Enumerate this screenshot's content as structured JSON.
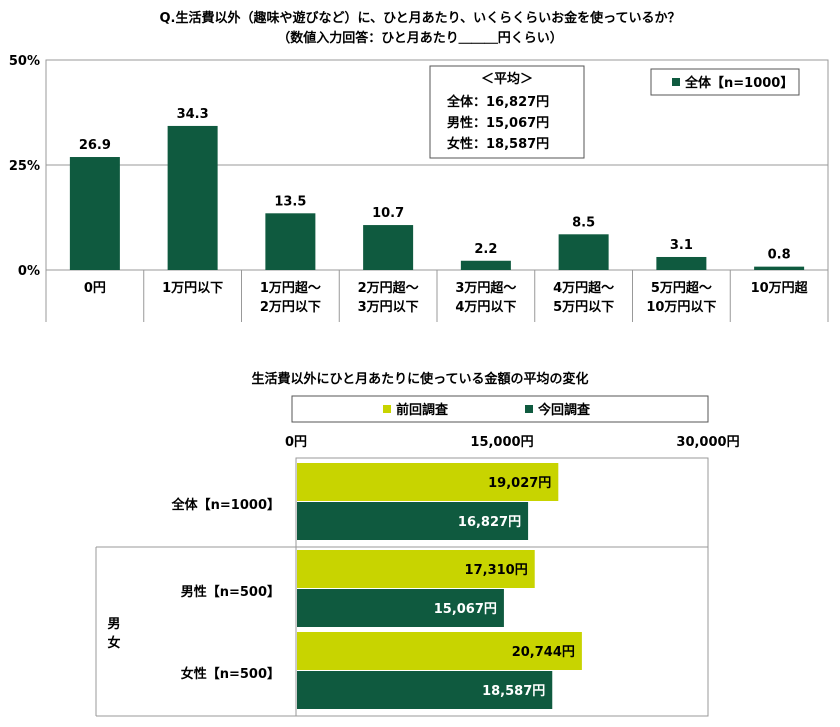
{
  "header": {
    "question": "Q.生活費以外（趣味や遊びなど）に、ひと月あたり、いくらくらいお金を使っているか？",
    "note": "（数値入力回答：ひと月あたり＿＿＿円くらい）"
  },
  "averages_box": {
    "title": "＜平均＞",
    "lines": [
      "全体：16,827円",
      "男性：15,067円",
      "女性：18,587円"
    ]
  },
  "colors": {
    "current": "#0f5a3f",
    "previous": "#c8d400"
  },
  "chart_data": [
    {
      "type": "bar",
      "legend": [
        "全体【n=1000】"
      ],
      "legend_position": "top-right",
      "y_unit": "%",
      "ylim": [
        0,
        50
      ],
      "yticks": [
        "0%",
        "25%",
        "50%"
      ],
      "grid": true,
      "categories": [
        "0円",
        "1万円以下",
        "1万円超～2万円以下",
        "2万円超～3万円以下",
        "3万円超～4万円以下",
        "4万円超～5万円以下",
        "5万円超～10万円以下",
        "10万円超"
      ],
      "category_lines": [
        [
          "0円"
        ],
        [
          "1万円以下"
        ],
        [
          "1万円超～",
          "2万円以下"
        ],
        [
          "2万円超～",
          "3万円以下"
        ],
        [
          "3万円超～",
          "4万円以下"
        ],
        [
          "4万円超～",
          "5万円以下"
        ],
        [
          "5万円超～",
          "10万円以下"
        ],
        [
          "10万円超"
        ]
      ],
      "series": [
        {
          "name": "全体【n=1000】",
          "values": [
            26.9,
            34.3,
            13.5,
            10.7,
            2.2,
            8.5,
            3.1,
            0.8
          ]
        }
      ],
      "value_labels": [
        "26.9",
        "34.3",
        "13.5",
        "10.7",
        "2.2",
        "8.5",
        "3.1",
        "0.8"
      ]
    },
    {
      "type": "bar",
      "orientation": "horizontal",
      "title": "生活費以外にひと月あたりに使っている金額の平均の変化",
      "xlim": [
        0,
        30000
      ],
      "xticks": [
        "0円",
        "15,000円",
        "30,000円"
      ],
      "legend": [
        "前回調査",
        "今回調査"
      ],
      "legend_position": "top",
      "side_label": [
        "男",
        "女"
      ],
      "categories": [
        "全体【n=1000】",
        "男性【n=500】",
        "女性【n=500】"
      ],
      "series": [
        {
          "name": "前回調査",
          "values": [
            19027,
            17310,
            20744
          ],
          "labels": [
            "19,027円",
            "17,310円",
            "20,744円"
          ]
        },
        {
          "name": "今回調査",
          "values": [
            16827,
            15067,
            18587
          ],
          "labels": [
            "16,827円",
            "15,067円",
            "18,587円"
          ]
        }
      ]
    }
  ]
}
